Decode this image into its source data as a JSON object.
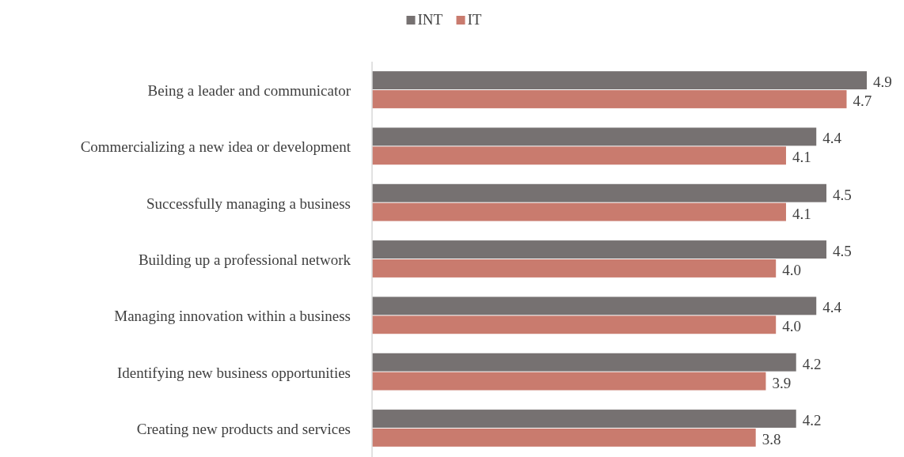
{
  "chart_data": {
    "type": "bar",
    "orientation": "horizontal",
    "categories": [
      "Being a leader and communicator",
      "Commercializing a new idea or development",
      "Successfully managing a business",
      "Building up a professional network",
      "Managing innovation within a business",
      "Identifying new business opportunities",
      "Creating new products and services"
    ],
    "series": [
      {
        "name": "INT",
        "color": "#767171",
        "values": [
          4.9,
          4.4,
          4.5,
          4.5,
          4.4,
          4.2,
          4.2
        ],
        "value_labels": [
          "4.9",
          "4.4",
          "4.5",
          "4.5",
          "4.4",
          "4.2",
          "4.2"
        ]
      },
      {
        "name": "IT",
        "color": "#c97b6e",
        "values": [
          4.7,
          4.1,
          4.1,
          4.0,
          4.0,
          3.9,
          3.8
        ],
        "value_labels": [
          "4.7",
          "4.1",
          "4.1",
          "4.0",
          "4.0",
          "3.9",
          "3.8"
        ]
      }
    ],
    "legend": "top"
  }
}
